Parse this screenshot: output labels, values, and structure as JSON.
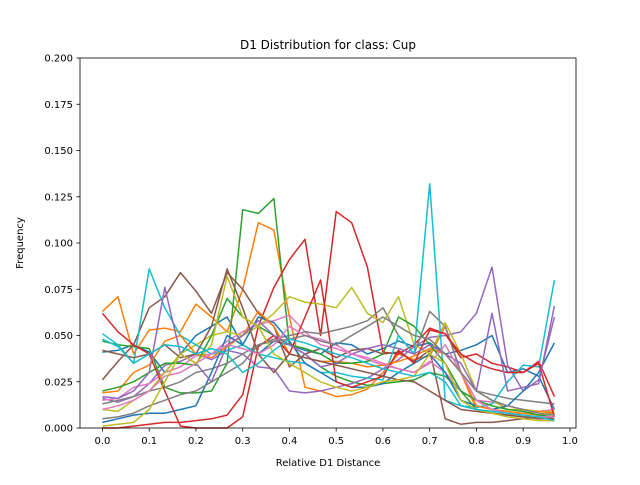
{
  "chart_data": {
    "type": "line",
    "title": "D1 Distribution for class: Cup",
    "xlabel": "Relative D1 Distance",
    "ylabel": "Frequency",
    "xlim": [
      -0.048,
      1.013
    ],
    "ylim": [
      0,
      0.2
    ],
    "xticks": [
      "0.0",
      "0.1",
      "0.2",
      "0.3",
      "0.4",
      "0.5",
      "0.6",
      "0.7",
      "0.8",
      "0.9",
      "1.0"
    ],
    "xtick_values": [
      0.0,
      0.1,
      0.2,
      0.3,
      0.4,
      0.5,
      0.6,
      0.7,
      0.8,
      0.9,
      1.0
    ],
    "yticks": [
      "0.000",
      "0.025",
      "0.050",
      "0.075",
      "0.100",
      "0.125",
      "0.150",
      "0.175",
      "0.200"
    ],
    "ytick_values": [
      0.0,
      0.025,
      0.05,
      0.075,
      0.1,
      0.125,
      0.15,
      0.175,
      0.2
    ],
    "grid": false,
    "legend": "none",
    "x": [
      0.0,
      0.0333,
      0.0667,
      0.1,
      0.1333,
      0.1667,
      0.2,
      0.2333,
      0.2667,
      0.3,
      0.3333,
      0.3667,
      0.4,
      0.4333,
      0.4667,
      0.5,
      0.5333,
      0.5667,
      0.6,
      0.6333,
      0.6667,
      0.7,
      0.7333,
      0.7667,
      0.8,
      0.8333,
      0.8667,
      0.9,
      0.9333,
      0.9667
    ],
    "series": [
      {
        "color": "#1f77b4",
        "values": [
          0.041,
          0.042,
          0.045,
          0.041,
          0.03,
          0.04,
          0.05,
          0.055,
          0.06,
          0.045,
          0.04,
          0.047,
          0.045,
          0.042,
          0.04,
          0.046,
          0.045,
          0.04,
          0.043,
          0.047,
          0.044,
          0.046,
          0.04,
          0.042,
          0.045,
          0.05,
          0.03,
          0.032,
          0.028,
          0.01
        ]
      },
      {
        "color": "#ff7f0e",
        "values": [
          0.063,
          0.071,
          0.04,
          0.053,
          0.054,
          0.052,
          0.067,
          0.06,
          0.052,
          0.075,
          0.111,
          0.107,
          0.06,
          0.022,
          0.02,
          0.017,
          0.018,
          0.021,
          0.03,
          0.04,
          0.037,
          0.039,
          0.055,
          0.03,
          0.01,
          0.008,
          0.007,
          0.008,
          0.007,
          0.008
        ]
      },
      {
        "color": "#2ca02c",
        "values": [
          0.047,
          0.045,
          0.044,
          0.043,
          0.022,
          0.019,
          0.019,
          0.02,
          0.035,
          0.118,
          0.116,
          0.124,
          0.045,
          0.04,
          0.033,
          0.028,
          0.025,
          0.023,
          0.024,
          0.025,
          0.026,
          0.03,
          0.028,
          0.02,
          0.01,
          0.008,
          0.007,
          0.006,
          0.006,
          0.005
        ]
      },
      {
        "color": "#d62728",
        "values": [
          0.0,
          0.0,
          0.001,
          0.002,
          0.003,
          0.003,
          0.004,
          0.005,
          0.007,
          0.018,
          0.055,
          0.076,
          0.091,
          0.102,
          0.05,
          0.117,
          0.111,
          0.087,
          0.041,
          0.04,
          0.045,
          0.054,
          0.051,
          0.038,
          0.04,
          0.035,
          0.033,
          0.03,
          0.036,
          0.017
        ]
      },
      {
        "color": "#9467bd",
        "values": [
          0.016,
          0.014,
          0.017,
          0.024,
          0.034,
          0.036,
          0.04,
          0.037,
          0.042,
          0.04,
          0.033,
          0.032,
          0.02,
          0.019,
          0.02,
          0.022,
          0.024,
          0.027,
          0.032,
          0.037,
          0.044,
          0.049,
          0.05,
          0.052,
          0.062,
          0.087,
          0.034,
          0.02,
          0.026,
          0.06
        ]
      },
      {
        "color": "#8c564b",
        "values": [
          0.026,
          0.036,
          0.045,
          0.065,
          0.071,
          0.084,
          0.074,
          0.062,
          0.084,
          0.075,
          0.062,
          0.055,
          0.033,
          0.04,
          0.043,
          0.038,
          0.042,
          0.043,
          0.04,
          0.041,
          0.036,
          0.042,
          0.005,
          0.002,
          0.003,
          0.003,
          0.004,
          0.005,
          0.006,
          0.005
        ]
      },
      {
        "color": "#e377c2",
        "values": [
          0.015,
          0.016,
          0.022,
          0.024,
          0.03,
          0.033,
          0.039,
          0.04,
          0.047,
          0.052,
          0.056,
          0.058,
          0.061,
          0.052,
          0.045,
          0.043,
          0.04,
          0.037,
          0.034,
          0.032,
          0.03,
          0.036,
          0.03,
          0.02,
          0.015,
          0.014,
          0.012,
          0.01,
          0.009,
          0.01
        ]
      },
      {
        "color": "#7f7f7f",
        "values": [
          0.013,
          0.015,
          0.017,
          0.02,
          0.022,
          0.025,
          0.03,
          0.032,
          0.035,
          0.04,
          0.045,
          0.048,
          0.05,
          0.052,
          0.051,
          0.053,
          0.055,
          0.058,
          0.065,
          0.05,
          0.04,
          0.063,
          0.055,
          0.03,
          0.02,
          0.018,
          0.016,
          0.015,
          0.014,
          0.013
        ]
      },
      {
        "color": "#bcbd22",
        "values": [
          0.01,
          0.009,
          0.015,
          0.02,
          0.03,
          0.04,
          0.045,
          0.05,
          0.052,
          0.05,
          0.055,
          0.062,
          0.071,
          0.068,
          0.067,
          0.065,
          0.076,
          0.062,
          0.057,
          0.071,
          0.045,
          0.04,
          0.057,
          0.04,
          0.02,
          0.015,
          0.01,
          0.01,
          0.009,
          0.009
        ]
      },
      {
        "color": "#17becf",
        "values": [
          0.051,
          0.045,
          0.035,
          0.086,
          0.065,
          0.05,
          0.045,
          0.04,
          0.042,
          0.045,
          0.04,
          0.038,
          0.036,
          0.035,
          0.03,
          0.03,
          0.028,
          0.027,
          0.026,
          0.05,
          0.04,
          0.132,
          0.015,
          0.012,
          0.011,
          0.013,
          0.025,
          0.034,
          0.033,
          0.08
        ]
      },
      {
        "color": "#1f77b4",
        "values": [
          0.003,
          0.005,
          0.007,
          0.008,
          0.008,
          0.01,
          0.012,
          0.03,
          0.05,
          0.045,
          0.06,
          0.057,
          0.047,
          0.035,
          0.03,
          0.025,
          0.022,
          0.022,
          0.024,
          0.03,
          0.035,
          0.04,
          0.03,
          0.015,
          0.012,
          0.01,
          0.012,
          0.02,
          0.03,
          0.046
        ]
      },
      {
        "color": "#ff7f0e",
        "values": [
          0.019,
          0.02,
          0.03,
          0.034,
          0.047,
          0.05,
          0.04,
          0.038,
          0.044,
          0.05,
          0.063,
          0.055,
          0.04,
          0.038,
          0.036,
          0.036,
          0.035,
          0.033,
          0.034,
          0.036,
          0.039,
          0.043,
          0.04,
          0.03,
          0.012,
          0.01,
          0.009,
          0.008,
          0.009,
          0.008
        ]
      },
      {
        "color": "#2ca02c",
        "values": [
          0.02,
          0.022,
          0.025,
          0.03,
          0.035,
          0.035,
          0.034,
          0.05,
          0.07,
          0.06,
          0.055,
          0.05,
          0.045,
          0.043,
          0.04,
          0.035,
          0.035,
          0.036,
          0.04,
          0.06,
          0.055,
          0.045,
          0.035,
          0.02,
          0.015,
          0.012,
          0.01,
          0.009,
          0.007,
          0.006
        ]
      },
      {
        "color": "#d62728",
        "values": [
          0.062,
          0.052,
          0.045,
          0.04,
          0.02,
          0.001,
          0.0,
          0.0,
          0.0,
          0.006,
          0.044,
          0.05,
          0.04,
          0.06,
          0.08,
          0.025,
          0.022,
          0.025,
          0.028,
          0.042,
          0.035,
          0.053,
          0.051,
          0.04,
          0.035,
          0.032,
          0.03,
          0.03,
          0.035,
          0.006
        ]
      },
      {
        "color": "#9467bd",
        "values": [
          0.017,
          0.016,
          0.02,
          0.03,
          0.076,
          0.04,
          0.035,
          0.025,
          0.045,
          0.05,
          0.058,
          0.05,
          0.045,
          0.04,
          0.033,
          0.035,
          0.04,
          0.043,
          0.045,
          0.043,
          0.04,
          0.045,
          0.04,
          0.035,
          0.02,
          0.062,
          0.02,
          0.022,
          0.024,
          0.066
        ]
      },
      {
        "color": "#8c564b",
        "values": [
          0.042,
          0.04,
          0.038,
          0.04,
          0.045,
          0.038,
          0.04,
          0.055,
          0.086,
          0.065,
          0.04,
          0.03,
          0.04,
          0.038,
          0.036,
          0.034,
          0.032,
          0.03,
          0.028,
          0.026,
          0.025,
          0.02,
          0.015,
          0.01,
          0.009,
          0.008,
          0.007,
          0.006,
          0.005,
          0.005
        ]
      },
      {
        "color": "#e377c2",
        "values": [
          0.01,
          0.012,
          0.015,
          0.02,
          0.028,
          0.03,
          0.035,
          0.04,
          0.045,
          0.043,
          0.04,
          0.045,
          0.055,
          0.05,
          0.048,
          0.045,
          0.04,
          0.038,
          0.035,
          0.032,
          0.03,
          0.035,
          0.045,
          0.03,
          0.015,
          0.01,
          0.008,
          0.007,
          0.006,
          0.006
        ]
      },
      {
        "color": "#7f7f7f",
        "values": [
          0.005,
          0.006,
          0.008,
          0.012,
          0.015,
          0.018,
          0.02,
          0.025,
          0.03,
          0.035,
          0.045,
          0.047,
          0.048,
          0.05,
          0.047,
          0.045,
          0.05,
          0.055,
          0.06,
          0.055,
          0.05,
          0.048,
          0.04,
          0.03,
          0.02,
          0.015,
          0.012,
          0.01,
          0.008,
          0.007
        ]
      },
      {
        "color": "#bcbd22",
        "values": [
          0.001,
          0.002,
          0.003,
          0.01,
          0.025,
          0.04,
          0.035,
          0.045,
          0.082,
          0.06,
          0.055,
          0.04,
          0.035,
          0.03,
          0.025,
          0.022,
          0.02,
          0.022,
          0.025,
          0.026,
          0.028,
          0.04,
          0.035,
          0.015,
          0.01,
          0.008,
          0.006,
          0.005,
          0.004,
          0.004
        ]
      },
      {
        "color": "#17becf",
        "values": [
          0.048,
          0.044,
          0.035,
          0.04,
          0.045,
          0.044,
          0.04,
          0.043,
          0.04,
          0.03,
          0.035,
          0.042,
          0.048,
          0.046,
          0.043,
          0.04,
          0.038,
          0.035,
          0.032,
          0.03,
          0.028,
          0.03,
          0.025,
          0.012,
          0.01,
          0.009,
          0.008,
          0.007,
          0.006,
          0.004
        ]
      }
    ]
  }
}
